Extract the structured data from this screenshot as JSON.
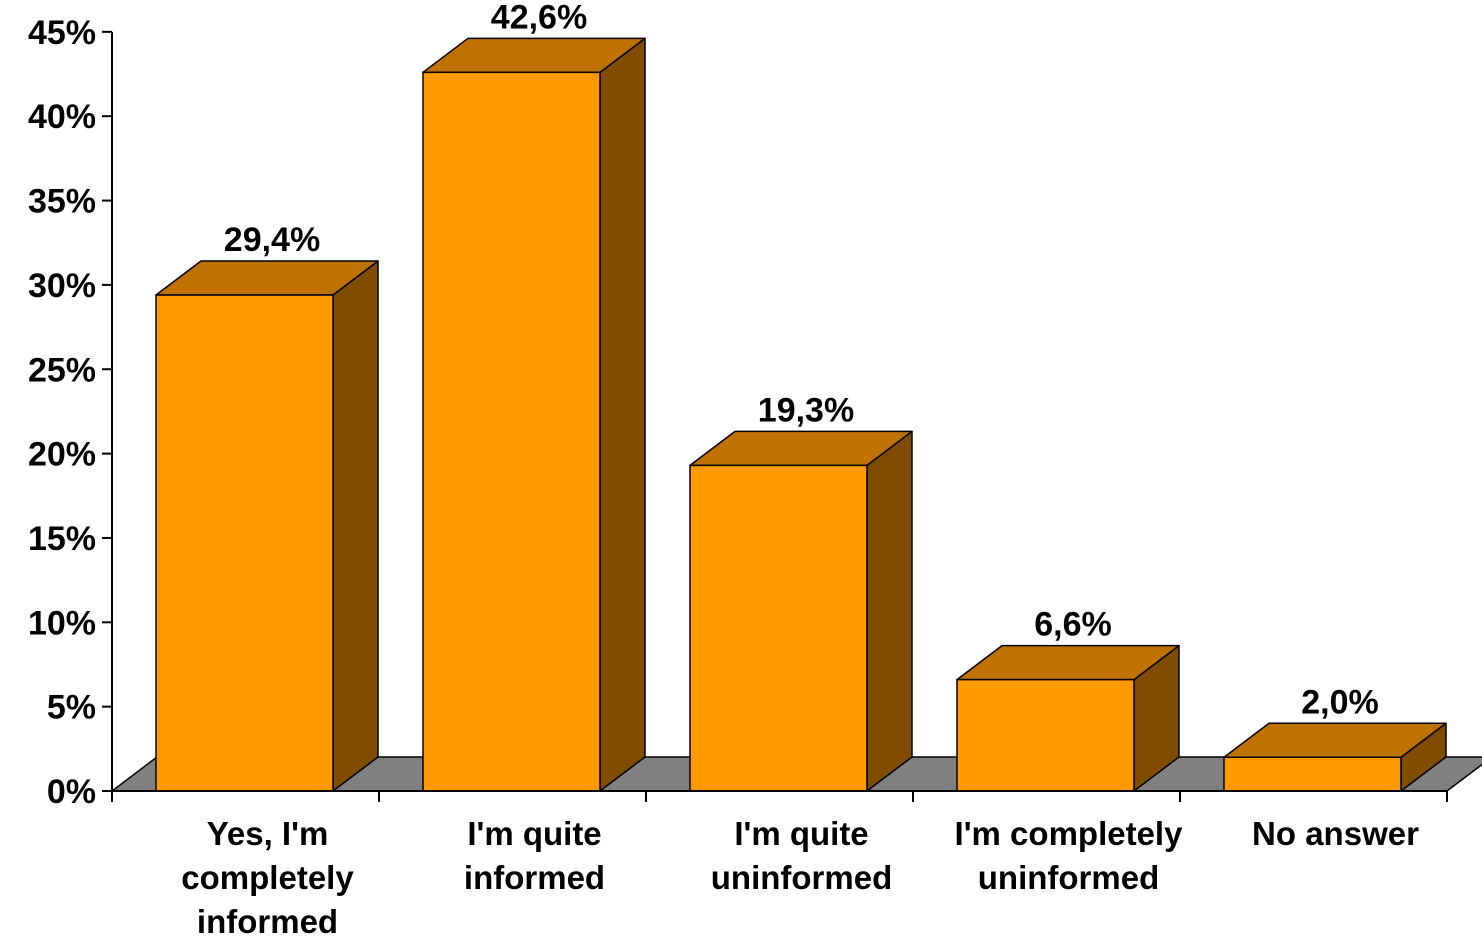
{
  "chart_data": {
    "type": "bar",
    "style": "3d-column",
    "categories": [
      [
        "Yes, I'm",
        "completely",
        "informed"
      ],
      [
        "I'm quite",
        "informed"
      ],
      [
        "I'm quite",
        "uninformed"
      ],
      [
        "I'm completely",
        "uninformed"
      ],
      [
        "No answer"
      ]
    ],
    "values": [
      29.4,
      42.6,
      19.3,
      6.6,
      2.0
    ],
    "data_labels": [
      "29,4%",
      "42,6%",
      "19,3%",
      "6,6%",
      "2,0%"
    ],
    "yticks": [
      0,
      5,
      10,
      15,
      20,
      25,
      30,
      35,
      40,
      45
    ],
    "ytick_labels": [
      "0%",
      "5%",
      "10%",
      "15%",
      "20%",
      "25%",
      "30%",
      "35%",
      "40%",
      "45%"
    ],
    "ylim": [
      0,
      45
    ],
    "title": "",
    "xlabel": "",
    "ylabel": "",
    "grid": false,
    "legend": "none",
    "colors": {
      "bar_front": "#FF9900",
      "bar_top": "#C07200",
      "bar_side": "#804C00",
      "floor": "#808080",
      "outline": "#000000"
    }
  }
}
